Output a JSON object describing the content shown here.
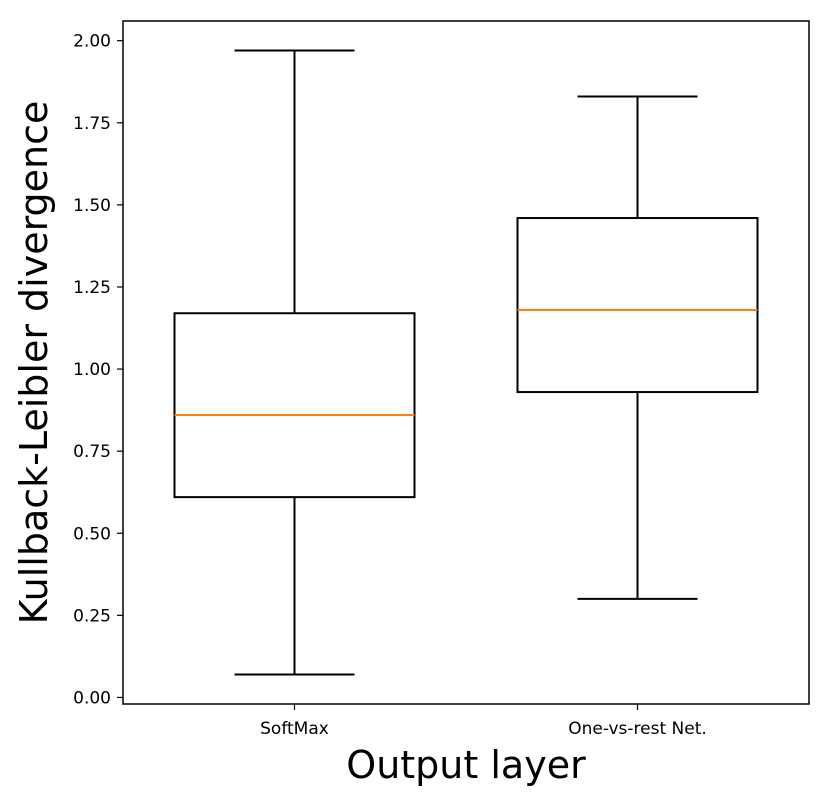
{
  "chart_data": {
    "type": "boxplot",
    "xlabel": "Output layer",
    "ylabel": "Kullback-Leibler divergence",
    "ylim": [
      -0.02,
      2.06
    ],
    "yticks": [
      0.0,
      0.25,
      0.5,
      0.75,
      1.0,
      1.25,
      1.5,
      1.75,
      2.0
    ],
    "ytick_labels": [
      "0.00",
      "0.25",
      "0.50",
      "0.75",
      "1.00",
      "1.25",
      "1.50",
      "1.75",
      "2.00"
    ],
    "categories": [
      "SoftMax",
      "One-vs-rest Net."
    ],
    "boxes": [
      {
        "category": "SoftMax",
        "whisker_low": 0.07,
        "q1": 0.61,
        "median": 0.86,
        "q3": 1.17,
        "whisker_high": 1.97
      },
      {
        "category": "One-vs-rest Net.",
        "whisker_low": 0.3,
        "q1": 0.93,
        "median": 1.18,
        "q3": 1.46,
        "whisker_high": 1.83
      }
    ],
    "colors": {
      "box": "#000000",
      "median": "#ff7f0e"
    },
    "grid": false
  }
}
